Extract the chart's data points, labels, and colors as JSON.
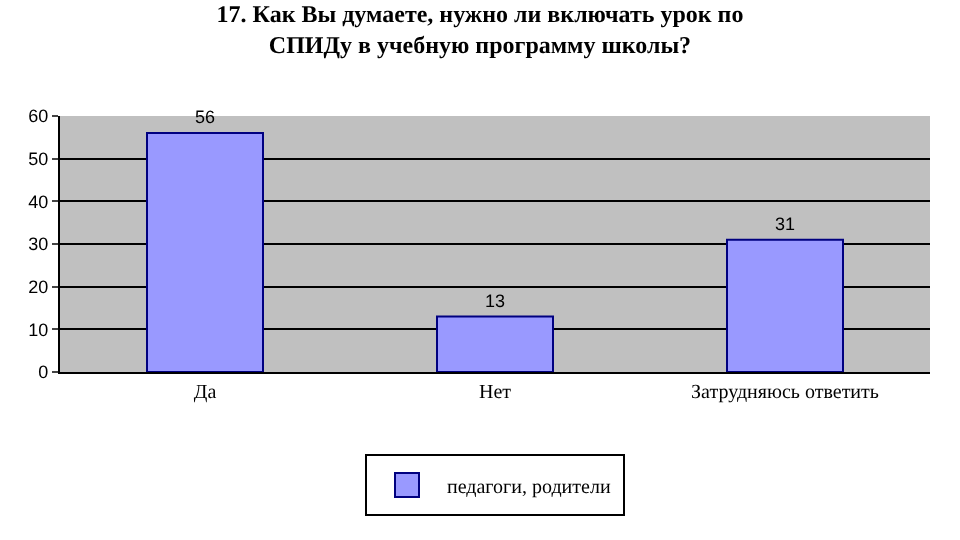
{
  "chart_data": {
    "type": "bar",
    "title": "17. Как Вы думаете, нужно ли включать урок по СПИДу в учебную программу школы?",
    "categories": [
      "Да",
      "Нет",
      "Затрудняюсь ответить"
    ],
    "series": [
      {
        "name": "педагоги, родители",
        "color": "#9999ff",
        "values": [
          56,
          13,
          31
        ]
      }
    ],
    "ylim": [
      0,
      60
    ],
    "yticks": [
      0,
      10,
      20,
      30,
      40,
      50,
      60
    ],
    "grid": "y",
    "legend": "bottom",
    "data_labels": true
  }
}
